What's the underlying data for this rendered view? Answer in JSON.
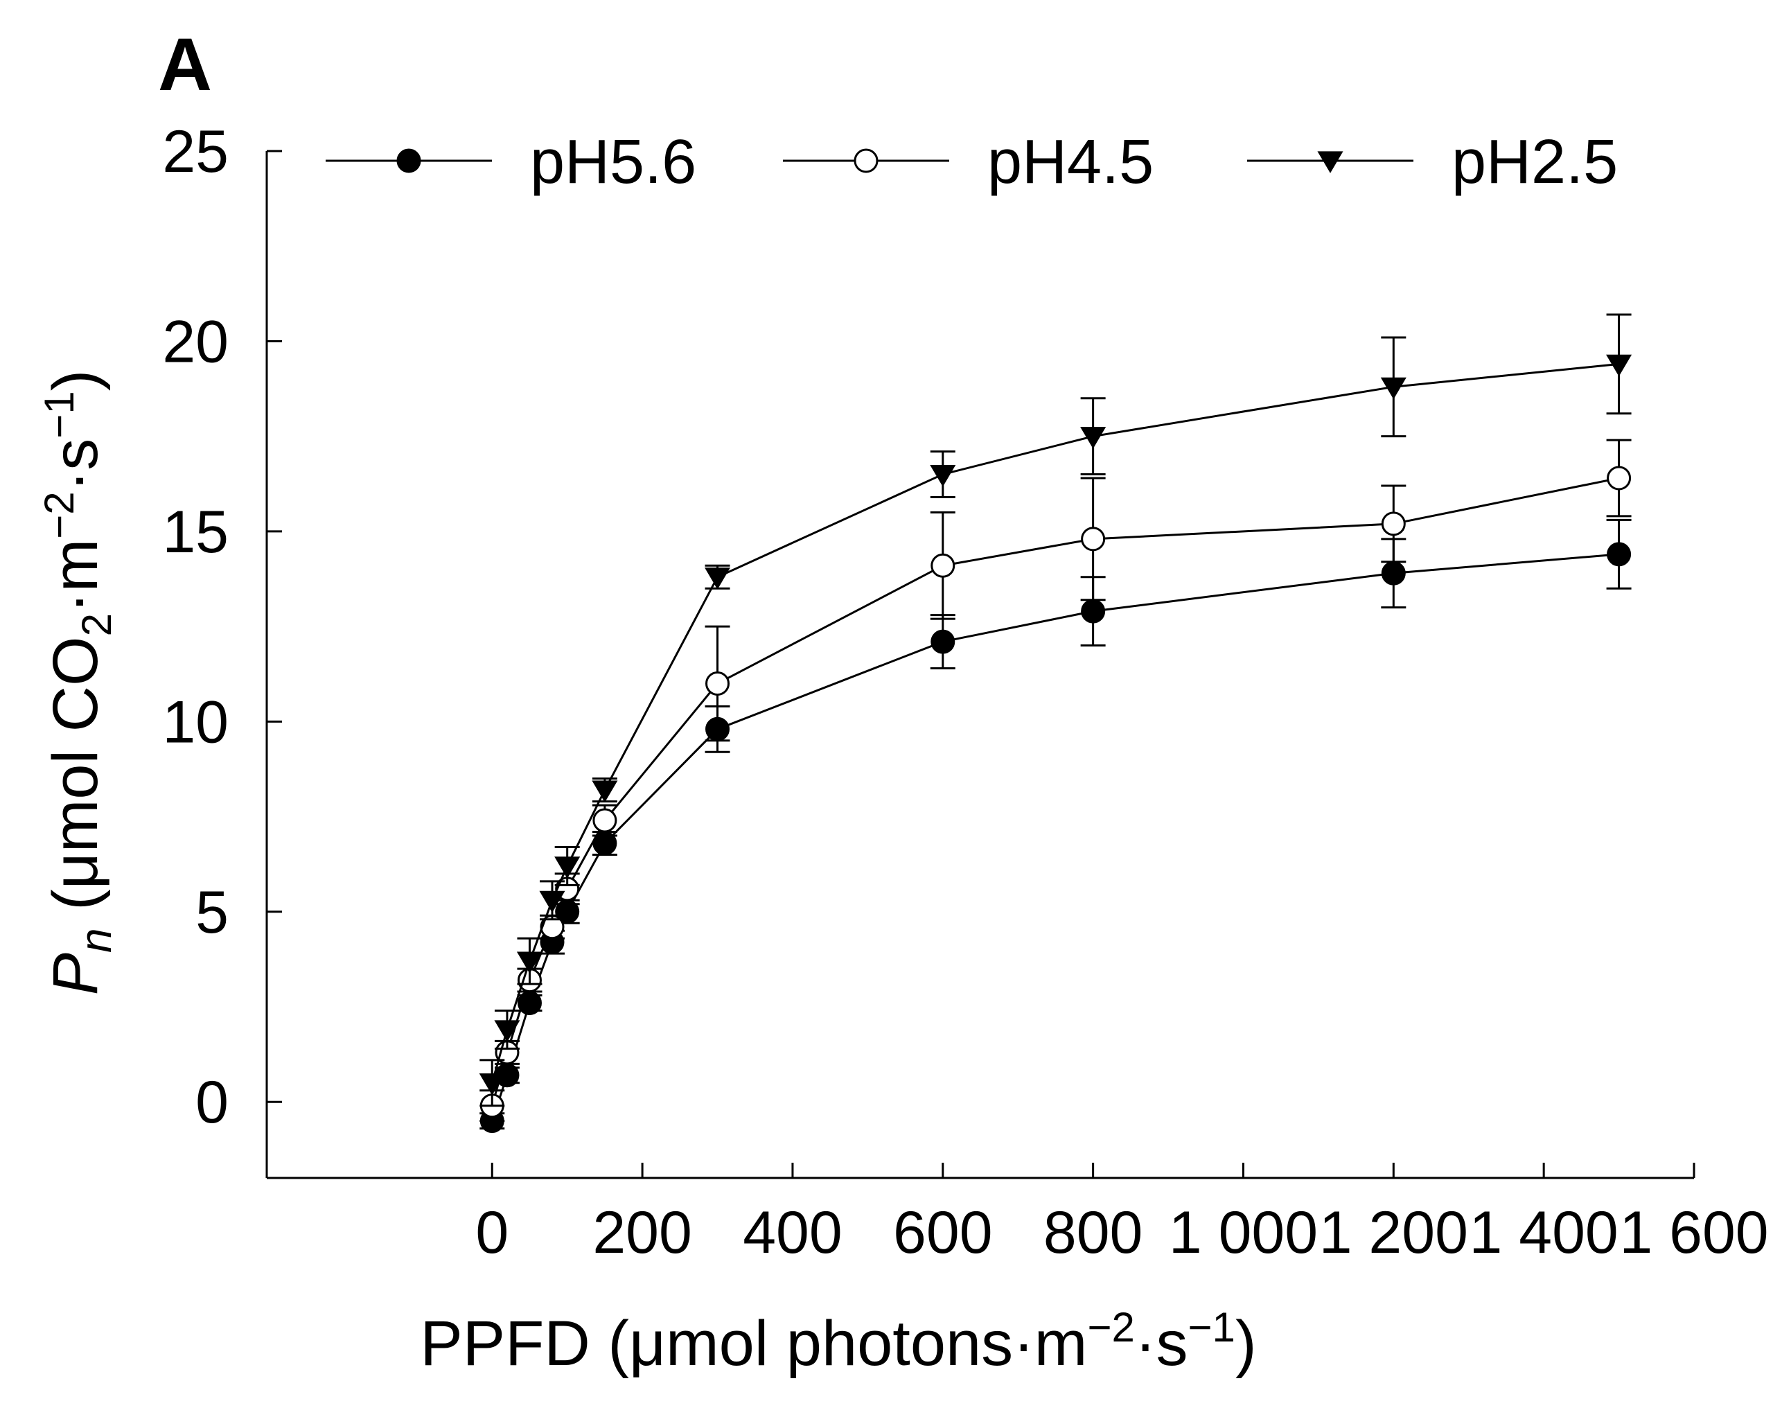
{
  "chart_data": {
    "type": "line",
    "panel_label": "A",
    "title": "",
    "xlabel": {
      "main": "PPFD (μmol photons·m",
      "exp1": "−2",
      "mid": "·s",
      "exp2": "−1",
      "close": ")"
    },
    "ylabel": {
      "var": "P",
      "var_sub": "n",
      "main": " (μmol CO",
      "sub": "2",
      "mid": "·m",
      "exp1": "−2",
      "mid2": "·s",
      "exp2": "−1",
      "close": ")"
    },
    "xlim": [
      -300,
      1600
    ],
    "ylim": [
      -2,
      25
    ],
    "x_ticks": [
      0,
      200,
      400,
      600,
      800,
      1000,
      1200,
      1400,
      1600
    ],
    "x_tick_labels": [
      "0",
      "200",
      "400",
      "600",
      "800",
      "1 000",
      "1 200",
      "1 400",
      "1 600"
    ],
    "y_ticks": [
      0,
      5,
      10,
      15,
      20,
      25
    ],
    "y_tick_labels": [
      "0",
      "5",
      "10",
      "15",
      "20",
      "25"
    ],
    "legend_position": "top",
    "x": [
      0,
      20,
      50,
      80,
      100,
      150,
      300,
      600,
      800,
      1200,
      1500
    ],
    "series": [
      {
        "name": "pH5.6",
        "marker": "filled-circle",
        "values": [
          -0.5,
          0.7,
          2.6,
          4.2,
          5.0,
          6.8,
          9.8,
          12.1,
          12.9,
          13.9,
          14.4
        ],
        "errors": [
          0.2,
          0.2,
          0.2,
          0.3,
          0.3,
          0.3,
          0.6,
          0.7,
          0.9,
          0.9,
          0.9
        ]
      },
      {
        "name": "pH4.5",
        "marker": "open-circle",
        "values": [
          -0.1,
          1.3,
          3.2,
          4.6,
          5.6,
          7.4,
          11.0,
          14.1,
          14.8,
          15.2,
          16.4
        ],
        "errors": [
          0.4,
          0.3,
          0.3,
          0.3,
          0.4,
          0.4,
          1.5,
          1.4,
          1.6,
          1.0,
          1.0
        ]
      },
      {
        "name": "pH2.5",
        "marker": "filled-triangle-down",
        "values": [
          0.5,
          1.9,
          3.7,
          5.3,
          6.2,
          8.2,
          13.8,
          16.5,
          17.5,
          18.8,
          19.4
        ],
        "errors": [
          0.6,
          0.5,
          0.6,
          0.5,
          0.5,
          0.3,
          0.3,
          0.6,
          1.0,
          1.3,
          1.3
        ]
      }
    ]
  }
}
